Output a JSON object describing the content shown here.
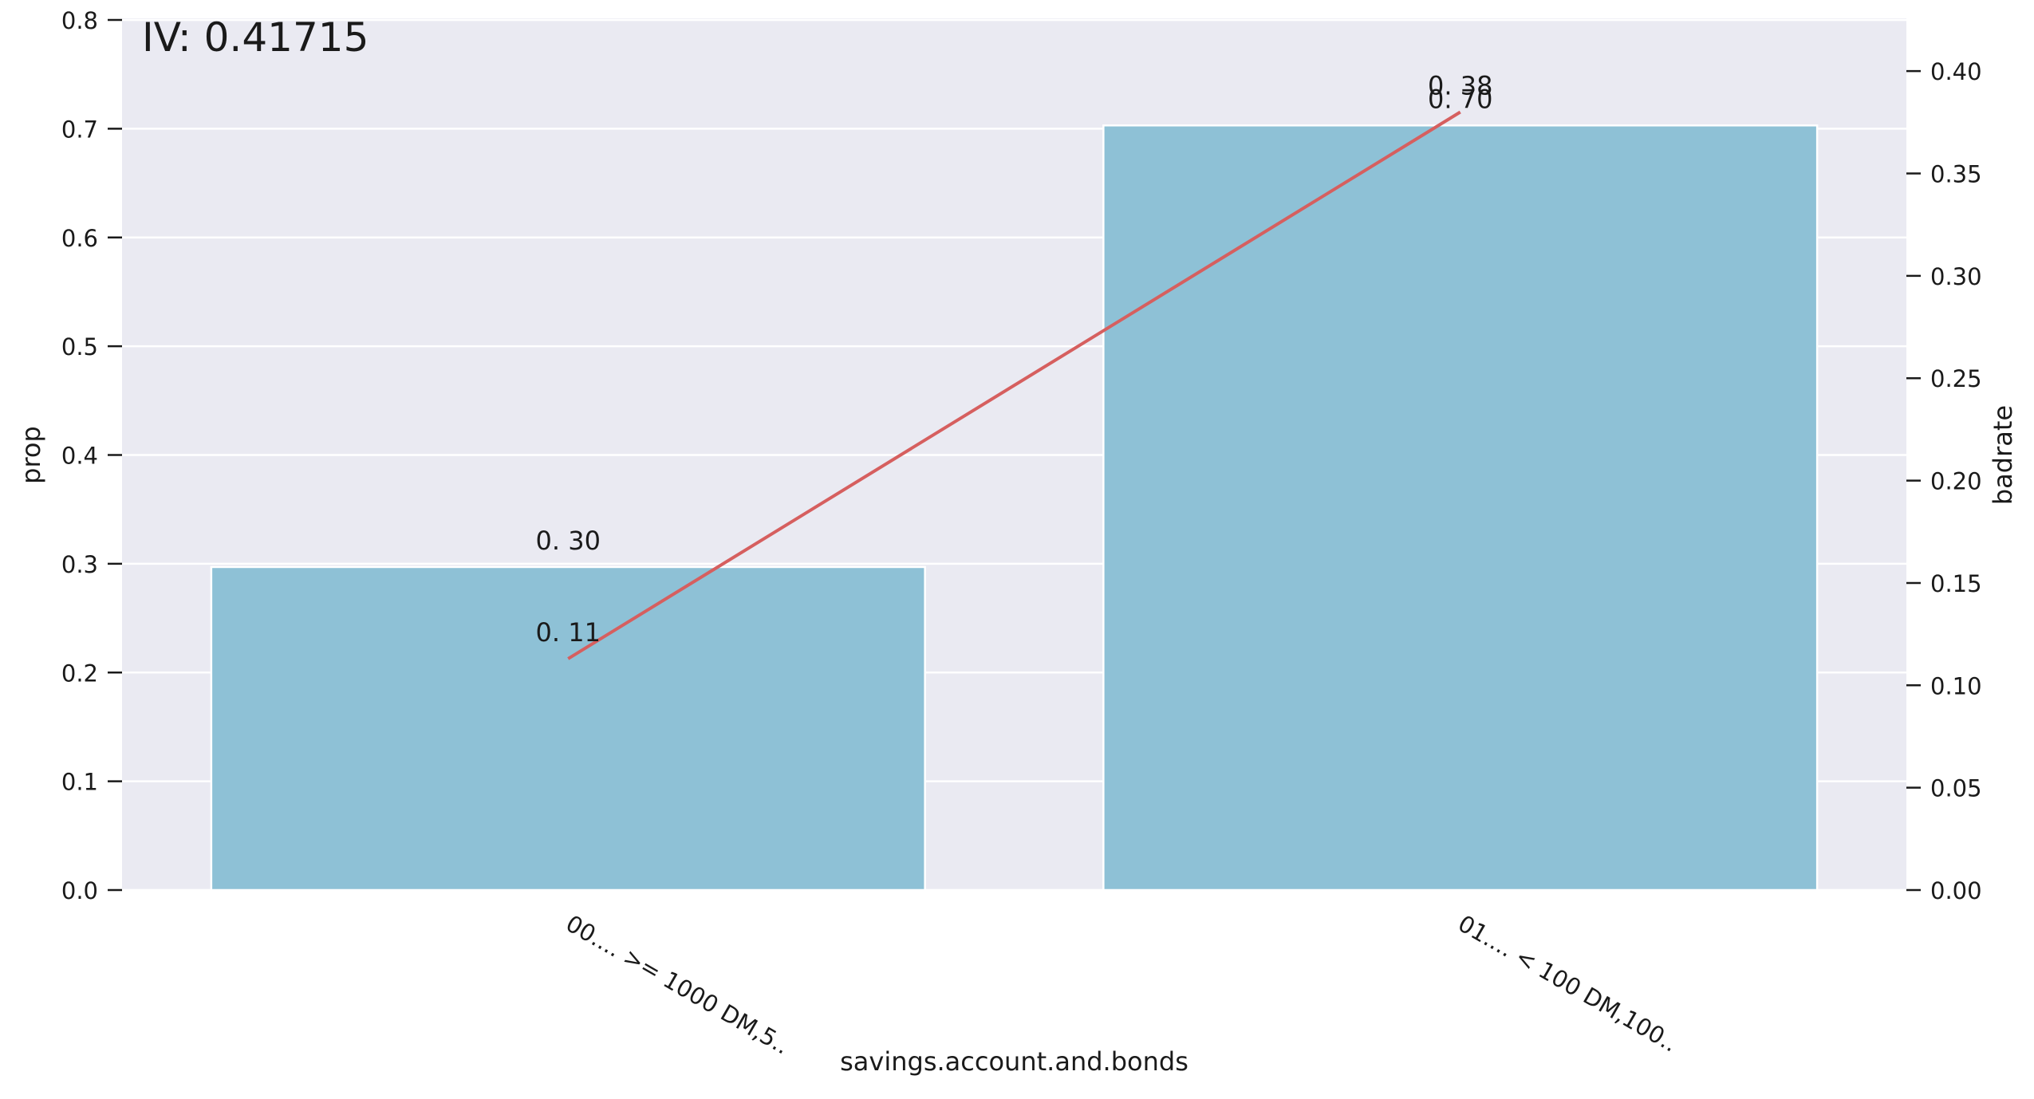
{
  "chart_data": {
    "type": "bar",
    "title": "",
    "annotation": "IV:  0.41715",
    "xlabel": "savings.account.and.bonds",
    "ylabel": "prop",
    "y2label": "badrate",
    "categories": [
      "00.... >= 1000 DM,5..",
      "01.... < 100 DM,100.."
    ],
    "series": [
      {
        "axis": "left",
        "kind": "bar",
        "values": [
          0.297,
          0.703
        ],
        "labels": [
          "0. 30",
          "0. 70"
        ],
        "color": "#8ec1d6"
      },
      {
        "axis": "right",
        "kind": "line",
        "values": [
          0.113,
          0.38
        ],
        "labels": [
          "0. 11",
          "0. 38"
        ],
        "color": "#d65f5f"
      }
    ],
    "ylim": [
      0,
      0.8
    ],
    "yticks": [
      "0.0",
      "0.1",
      "0.2",
      "0.3",
      "0.4",
      "0.5",
      "0.6",
      "0.7",
      "0.8"
    ],
    "y2lim": [
      0,
      0.425
    ],
    "y2ticks": [
      "0.00",
      "0.05",
      "0.10",
      "0.15",
      "0.20",
      "0.25",
      "0.30",
      "0.35",
      "0.40"
    ],
    "grid": true,
    "background": "#eaeaf2",
    "legend": "none"
  }
}
